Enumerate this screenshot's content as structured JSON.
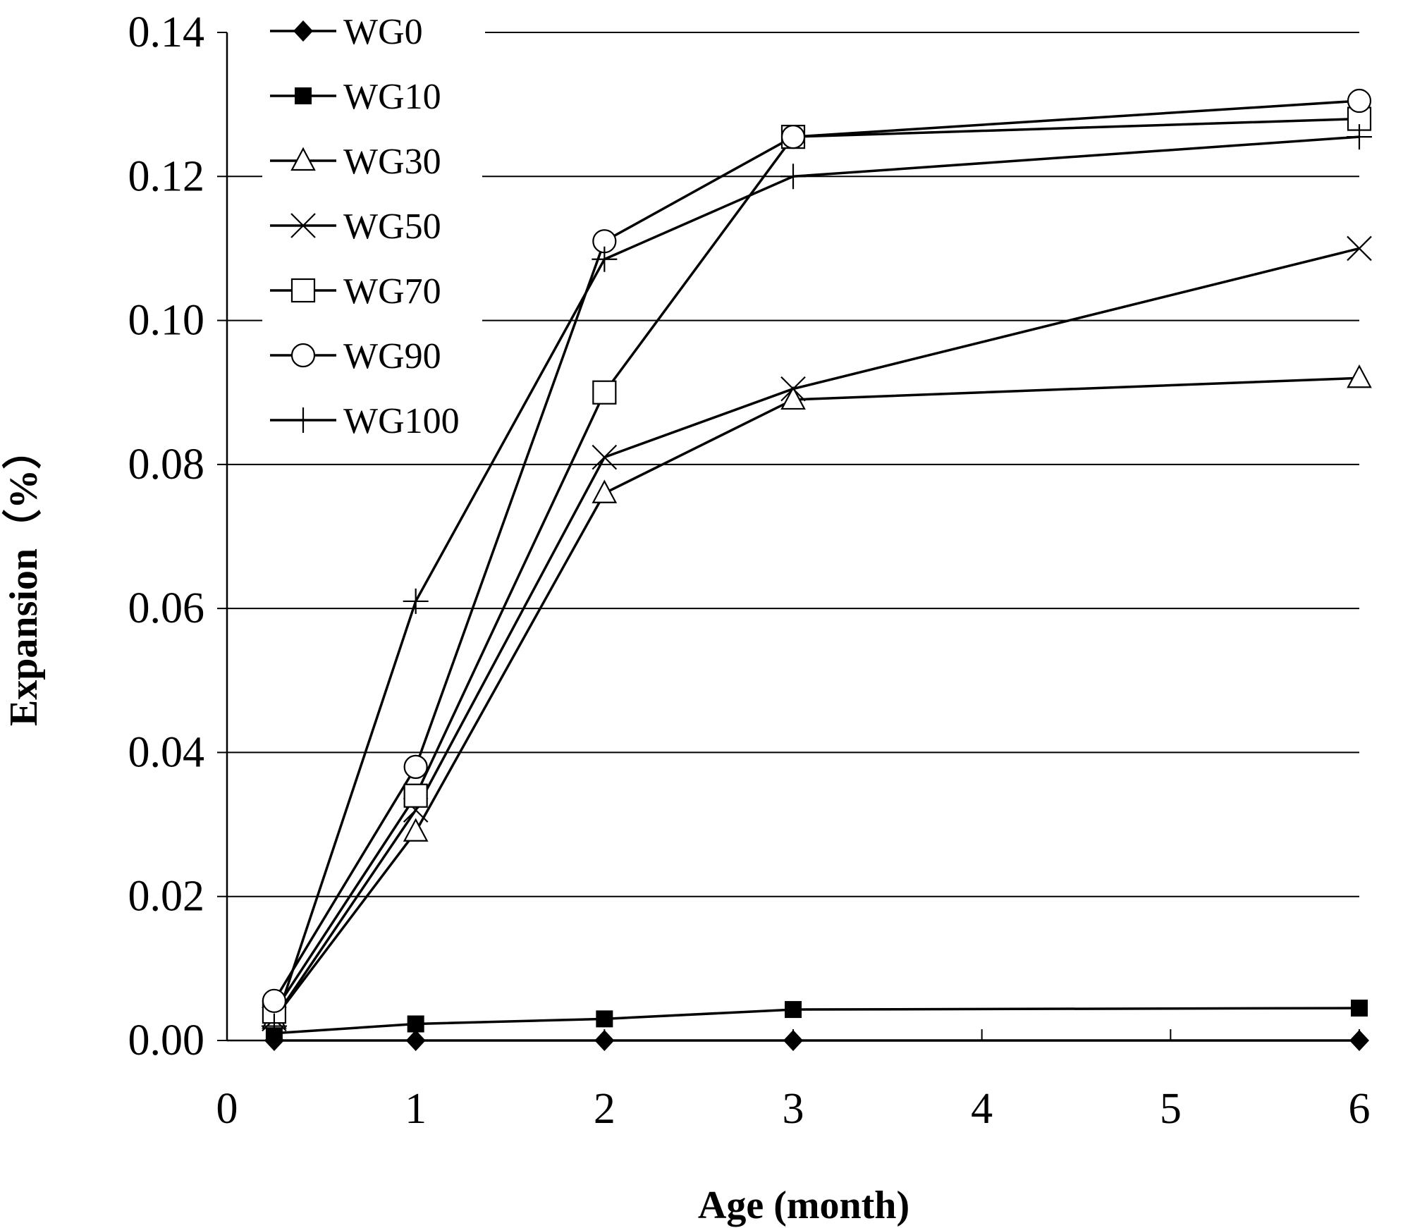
{
  "chart_data": {
    "type": "line",
    "title": "",
    "xlabel": "Age (month)",
    "ylabel": "Expansion（%）",
    "xlim": [
      0,
      6
    ],
    "ylim": [
      0,
      0.14
    ],
    "x_ticks": [
      0,
      1,
      2,
      3,
      4,
      5,
      6
    ],
    "x_tick_labels": [
      "0",
      "1",
      "2",
      "3",
      "4",
      "5",
      "6"
    ],
    "y_ticks": [
      0,
      0.02,
      0.04,
      0.06,
      0.08,
      0.1,
      0.12,
      0.14
    ],
    "y_tick_labels": [
      "0.00",
      "0.02",
      "0.04",
      "0.06",
      "0.08",
      "0.10",
      "0.12",
      "0.14"
    ],
    "grid": "horizontal",
    "legend_position": "top-left",
    "x": [
      0.25,
      1,
      2,
      3,
      6
    ],
    "series": [
      {
        "name": "WG0",
        "marker": "diamond-filled",
        "values": [
          0.0,
          0.0,
          0.0,
          0.0,
          0.0
        ]
      },
      {
        "name": "WG10",
        "marker": "square-filled",
        "values": [
          0.001,
          0.0023,
          0.003,
          0.0043,
          0.0045
        ]
      },
      {
        "name": "WG30",
        "marker": "triangle-open",
        "values": [
          0.003,
          0.029,
          0.076,
          0.089,
          0.092
        ]
      },
      {
        "name": "WG50",
        "marker": "x",
        "values": [
          0.003,
          0.032,
          0.081,
          0.0905,
          0.11
        ]
      },
      {
        "name": "WG70",
        "marker": "square-open",
        "values": [
          0.004,
          0.034,
          0.09,
          0.1255,
          0.128
        ]
      },
      {
        "name": "WG90",
        "marker": "circle-open",
        "values": [
          0.0055,
          0.038,
          0.111,
          0.1255,
          0.1305
        ]
      },
      {
        "name": "WG100",
        "marker": "plus",
        "values": [
          0.002,
          0.061,
          0.1085,
          0.12,
          0.1255
        ]
      }
    ]
  }
}
